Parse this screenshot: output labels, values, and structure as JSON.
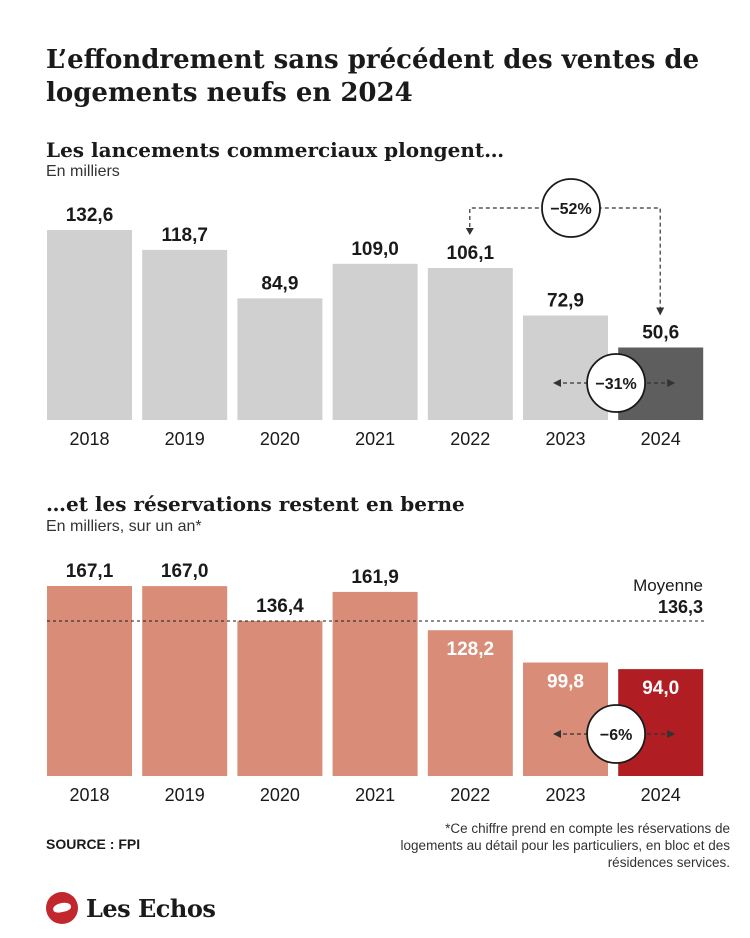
{
  "title": "L’effondrement sans précédent des ventes de logements neufs en 2024",
  "chart_data": [
    {
      "type": "bar",
      "title": "Les lancements commerciaux plongent…",
      "unit": "En milliers",
      "categories": [
        "2018",
        "2019",
        "2020",
        "2021",
        "2022",
        "2023",
        "2024"
      ],
      "values": [
        132.6,
        118.7,
        84.9,
        109.0,
        106.1,
        72.9,
        50.6
      ],
      "value_labels": [
        "132,6",
        "118,7",
        "84,9",
        "109,0",
        "106,1",
        "72,9",
        "50,6"
      ],
      "colors": [
        "#d0d0d0",
        "#d0d0d0",
        "#d0d0d0",
        "#d0d0d0",
        "#d0d0d0",
        "#d0d0d0",
        "#5e5e5e"
      ],
      "annotations": [
        {
          "label": "−52%",
          "from": "2022",
          "to": "2024"
        },
        {
          "label": "−31%",
          "from": "2023",
          "to": "2024"
        }
      ]
    },
    {
      "type": "bar",
      "title": "…et les réservations restent en berne",
      "unit": "En milliers, sur un an*",
      "categories": [
        "2018",
        "2019",
        "2020",
        "2021",
        "2022",
        "2023",
        "2024"
      ],
      "values": [
        167.1,
        167.0,
        136.4,
        161.9,
        128.2,
        99.8,
        94.0
      ],
      "value_labels": [
        "167,1",
        "167,0",
        "136,4",
        "161,9",
        "128,2",
        "99,8",
        "94,0"
      ],
      "colors": [
        "#d98d78",
        "#d98d78",
        "#d98d78",
        "#d98d78",
        "#d98d78",
        "#d98d78",
        "#b01e23"
      ],
      "reference_line": {
        "label": "Moyenne",
        "value": 136.3,
        "value_label": "136,3"
      },
      "annotations": [
        {
          "label": "−6%",
          "from": "2023",
          "to": "2024"
        }
      ]
    }
  ],
  "source": "SOURCE : FPI",
  "note": "*Ce chiffre prend en compte les réservations de logements au détail pour les particuliers, en bloc et des résidences services.",
  "brand": "Les Echos"
}
